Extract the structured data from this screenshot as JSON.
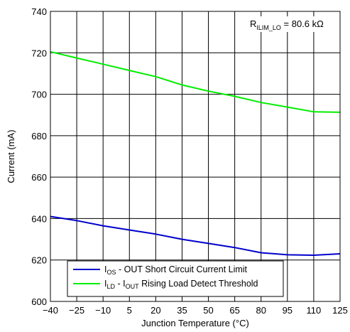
{
  "chart_data": {
    "type": "line",
    "xlabel": "Junction Temperature (°C)",
    "ylabel": "Current (mA)",
    "xlim": [
      -40,
      125
    ],
    "ylim": [
      600,
      740
    ],
    "x_ticks": [
      "−40",
      "−25",
      "−10",
      "5",
      "20",
      "35",
      "50",
      "65",
      "80",
      "95",
      "110",
      "125"
    ],
    "y_ticks": [
      "600",
      "620",
      "640",
      "660",
      "680",
      "700",
      "720",
      "740"
    ],
    "grid": true,
    "legend_position": "bottom-left",
    "annotation": {
      "main": "R",
      "sub": "ILIM_LO",
      "rest": " = 80.6 kΩ"
    },
    "series": [
      {
        "name": "I_OS - OUT Short Circuit Current Limit",
        "legend_main": "I",
        "legend_sub": "OS",
        "legend_rest": " - OUT Short Circuit Current Limit",
        "color": "#0000cc",
        "x": [
          -40,
          -25,
          -10,
          5,
          20,
          35,
          50,
          65,
          80,
          95,
          110,
          125
        ],
        "y": [
          641,
          639,
          636.5,
          634.5,
          632.5,
          630,
          628,
          626,
          623.5,
          622.5,
          622.3,
          623
        ]
      },
      {
        "name": "I_LD - I_OUT Rising Load Detect Threshold",
        "legend_main": "I",
        "legend_sub": "LD",
        "legend_mid": " - I",
        "legend_sub2": "OUT",
        "legend_rest": " Rising Load Detect Threshold",
        "color": "#00ee00",
        "x": [
          -40,
          -25,
          -10,
          5,
          20,
          35,
          50,
          65,
          80,
          95,
          110,
          125
        ],
        "y": [
          720.5,
          717.5,
          714.5,
          711.5,
          708.5,
          704.5,
          701.5,
          699,
          696,
          693.8,
          691.5,
          691.3
        ]
      }
    ]
  }
}
